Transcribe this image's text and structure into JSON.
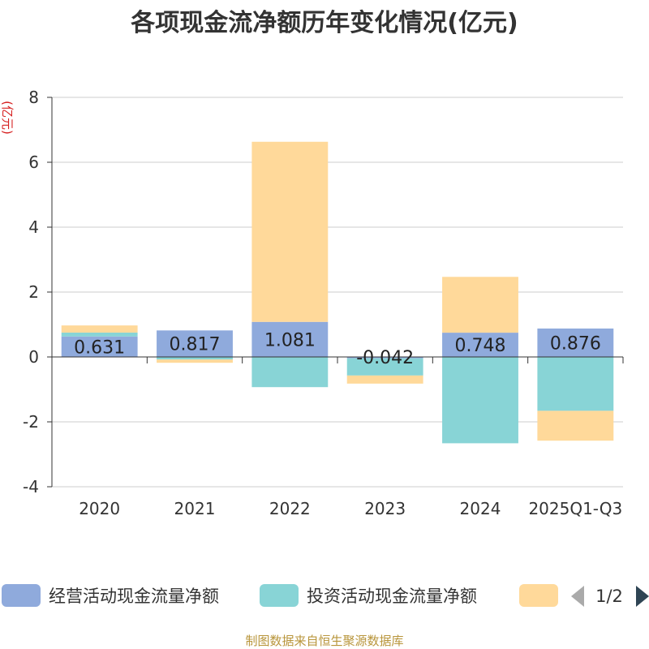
{
  "title": "各项现金流净额历年变化情况(亿元)",
  "unit_label": "(亿元)",
  "source": "制图数据来自恒生聚源数据库",
  "legend": {
    "page": "1/2"
  },
  "colors": {
    "operating": "#8FAADC",
    "investing": "#88D4D6",
    "financing": "#FFD99A",
    "axis": "#333333",
    "grid": "#CCCCCC",
    "nav_inactive": "#AAAAAA",
    "nav_active": "#2F4554"
  },
  "chart_data": {
    "type": "bar",
    "stacked": true,
    "categories": [
      "2020",
      "2021",
      "2022",
      "2023",
      "2024",
      "2025Q1-Q3"
    ],
    "ylim": [
      -4,
      8
    ],
    "yticks": [
      -4,
      -2,
      0,
      2,
      4,
      6,
      8
    ],
    "grid": true,
    "legend_position": "bottom",
    "series": [
      {
        "name": "经营活动现金流量净额",
        "values": [
          0.631,
          0.817,
          1.081,
          -0.042,
          0.748,
          0.876
        ],
        "labels": [
          "0.631",
          "0.817",
          "1.081",
          "-0.042",
          "0.748",
          "0.876"
        ]
      },
      {
        "name": "投资活动现金流量净额",
        "values": [
          0.12,
          -0.08,
          -0.93,
          -0.53,
          -2.66,
          -1.66
        ]
      },
      {
        "name": "",
        "values": [
          0.22,
          -0.1,
          5.55,
          -0.25,
          1.72,
          -0.92
        ]
      }
    ]
  }
}
